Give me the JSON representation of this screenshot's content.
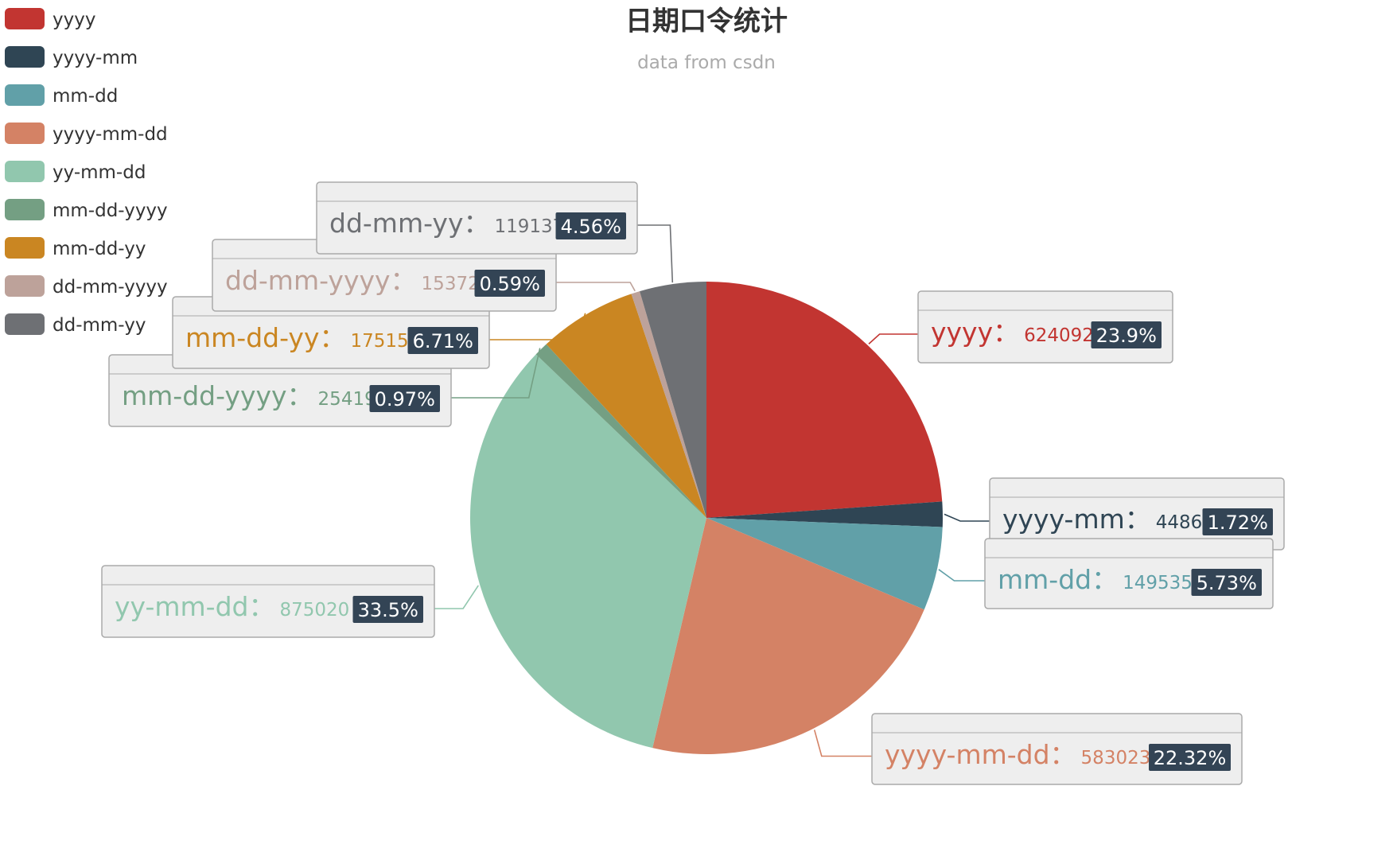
{
  "chart_data": {
    "type": "pie",
    "title": "日期口令统计",
    "subtitle": "data from csdn",
    "legend_position": "top-left",
    "label_separator": "：",
    "slices": [
      {
        "label": "yyyy",
        "value": 624092,
        "percent": "23.9%",
        "color": "#c23531"
      },
      {
        "label": "yyyy-mm",
        "value": 44861,
        "percent": "1.72%",
        "color": "#2f4554"
      },
      {
        "label": "mm-dd",
        "value": 149535,
        "percent": "5.73%",
        "color": "#61a0a8"
      },
      {
        "label": "yyyy-mm-dd",
        "value": 583023,
        "percent": "22.32%",
        "color": "#d48265"
      },
      {
        "label": "yy-mm-dd",
        "value": 875020,
        "percent": "33.5%",
        "color": "#91c7ae"
      },
      {
        "label": "mm-dd-yyyy",
        "value": 25419,
        "percent": "0.97%",
        "color": "#749f83"
      },
      {
        "label": "mm-dd-yy",
        "value": 175151,
        "percent": "6.71%",
        "color": "#ca8622"
      },
      {
        "label": "dd-mm-yyyy",
        "value": 15372,
        "percent": "0.59%",
        "color": "#bda29a"
      },
      {
        "label": "dd-mm-yy",
        "value": 119137,
        "percent": "4.56%",
        "color": "#6e7074"
      }
    ]
  }
}
